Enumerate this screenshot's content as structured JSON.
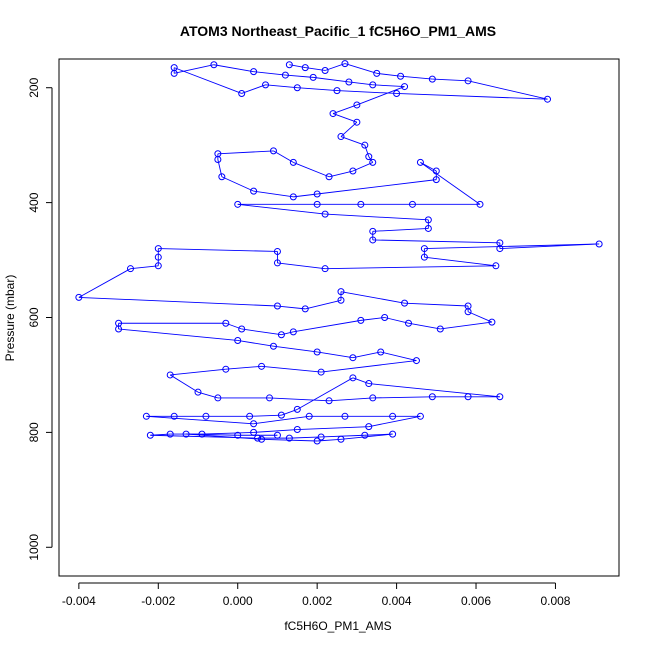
{
  "chart_data": {
    "type": "scatter",
    "title": "ATOM3 Northeast_Pacific_1 fC5H6O_PM1_AMS",
    "xlabel": "fC5H6O_PM1_AMS",
    "ylabel": "Pressure (mbar)",
    "xlim": [
      -0.0045,
      0.0096
    ],
    "ylim": [
      1050,
      150
    ],
    "y_reversed": true,
    "x_ticks": [
      -0.004,
      -0.002,
      0.0,
      0.002,
      0.004,
      0.006,
      0.008
    ],
    "x_tick_labels": [
      "-0.004",
      "-0.002",
      "0.000",
      "0.002",
      "0.004",
      "0.006",
      "0.008"
    ],
    "y_ticks": [
      200,
      400,
      600,
      800,
      1000
    ],
    "y_tick_labels": [
      "200",
      "400",
      "600",
      "800",
      "1000"
    ],
    "grid": false,
    "legend": "none",
    "series_color": "#0000ff",
    "markers": "open-circle",
    "connected": true,
    "points": [
      [
        0.0013,
        160
      ],
      [
        0.0017,
        165
      ],
      [
        0.0022,
        170
      ],
      [
        0.0027,
        158
      ],
      [
        0.0035,
        175
      ],
      [
        0.0041,
        180
      ],
      [
        0.0049,
        185
      ],
      [
        0.0058,
        188
      ],
      [
        0.0078,
        220
      ],
      [
        0.004,
        210
      ],
      [
        0.0025,
        205
      ],
      [
        0.0015,
        200
      ],
      [
        0.0007,
        195
      ],
      [
        0.0001,
        210
      ],
      [
        -0.0016,
        165
      ],
      [
        -0.0016,
        175
      ],
      [
        -0.0006,
        160
      ],
      [
        0.0004,
        172
      ],
      [
        0.0012,
        178
      ],
      [
        0.0019,
        182
      ],
      [
        0.0028,
        190
      ],
      [
        0.0034,
        195
      ],
      [
        0.0042,
        198
      ],
      [
        0.003,
        230
      ],
      [
        0.0024,
        245
      ],
      [
        0.003,
        260
      ],
      [
        0.0026,
        285
      ],
      [
        0.0032,
        300
      ],
      [
        0.0033,
        320
      ],
      [
        0.0034,
        330
      ],
      [
        0.0029,
        345
      ],
      [
        0.0023,
        355
      ],
      [
        0.0014,
        330
      ],
      [
        0.0009,
        310
      ],
      [
        -0.0005,
        315
      ],
      [
        -0.0005,
        325
      ],
      [
        -0.0004,
        355
      ],
      [
        0.0004,
        380
      ],
      [
        0.0014,
        390
      ],
      [
        0.002,
        385
      ],
      [
        0.005,
        360
      ],
      [
        0.005,
        345
      ],
      [
        0.0046,
        330
      ],
      [
        0.0061,
        403
      ],
      [
        0.0044,
        403
      ],
      [
        0.0031,
        403
      ],
      [
        0.002,
        403
      ],
      [
        0.0,
        403
      ],
      [
        0.0022,
        420
      ],
      [
        0.0048,
        430
      ],
      [
        0.0048,
        445
      ],
      [
        0.0034,
        450
      ],
      [
        0.0034,
        465
      ],
      [
        0.0066,
        470
      ],
      [
        0.0066,
        480
      ],
      [
        0.0091,
        472
      ],
      [
        0.0047,
        480
      ],
      [
        0.0047,
        495
      ],
      [
        0.0065,
        510
      ],
      [
        0.0022,
        515
      ],
      [
        0.001,
        505
      ],
      [
        0.001,
        485
      ],
      [
        -0.002,
        480
      ],
      [
        -0.002,
        495
      ],
      [
        -0.002,
        510
      ],
      [
        -0.0027,
        515
      ],
      [
        -0.004,
        565
      ],
      [
        0.001,
        580
      ],
      [
        0.0017,
        585
      ],
      [
        0.0026,
        570
      ],
      [
        0.0026,
        555
      ],
      [
        0.0042,
        575
      ],
      [
        0.0058,
        580
      ],
      [
        0.0058,
        590
      ],
      [
        0.0064,
        608
      ],
      [
        0.0051,
        620
      ],
      [
        0.0043,
        610
      ],
      [
        0.0037,
        600
      ],
      [
        0.0031,
        605
      ],
      [
        0.0014,
        625
      ],
      [
        0.0011,
        630
      ],
      [
        0.0001,
        620
      ],
      [
        -0.0003,
        610
      ],
      [
        -0.003,
        610
      ],
      [
        -0.003,
        620
      ],
      [
        0.0,
        640
      ],
      [
        0.0009,
        650
      ],
      [
        0.002,
        660
      ],
      [
        0.0029,
        670
      ],
      [
        0.0036,
        660
      ],
      [
        0.0045,
        675
      ],
      [
        0.0021,
        695
      ],
      [
        0.0006,
        685
      ],
      [
        -0.0003,
        690
      ],
      [
        -0.0017,
        700
      ],
      [
        -0.001,
        730
      ],
      [
        -0.0005,
        740
      ],
      [
        0.0008,
        740
      ],
      [
        0.0023,
        745
      ],
      [
        0.0034,
        740
      ],
      [
        0.0049,
        738
      ],
      [
        0.0058,
        738
      ],
      [
        0.0066,
        738
      ],
      [
        0.0033,
        715
      ],
      [
        0.0029,
        705
      ],
      [
        0.0015,
        760
      ],
      [
        0.0011,
        770
      ],
      [
        0.0003,
        772
      ],
      [
        -0.0008,
        772
      ],
      [
        -0.0016,
        772
      ],
      [
        -0.0023,
        772
      ],
      [
        0.0004,
        785
      ],
      [
        0.0018,
        772
      ],
      [
        0.0027,
        772
      ],
      [
        0.0039,
        772
      ],
      [
        0.0046,
        772
      ],
      [
        0.0033,
        790
      ],
      [
        0.0015,
        795
      ],
      [
        0.0004,
        800
      ],
      [
        -0.0009,
        803
      ],
      [
        -0.0017,
        803
      ],
      [
        -0.0022,
        805
      ],
      [
        0.0005,
        810
      ],
      [
        0.0013,
        810
      ],
      [
        0.0021,
        808
      ],
      [
        0.0032,
        805
      ],
      [
        0.0039,
        803
      ],
      [
        0.0026,
        812
      ],
      [
        0.002,
        815
      ],
      [
        0.0006,
        812
      ],
      [
        -0.0013,
        803
      ],
      [
        0.0,
        805
      ],
      [
        0.001,
        805
      ]
    ]
  }
}
